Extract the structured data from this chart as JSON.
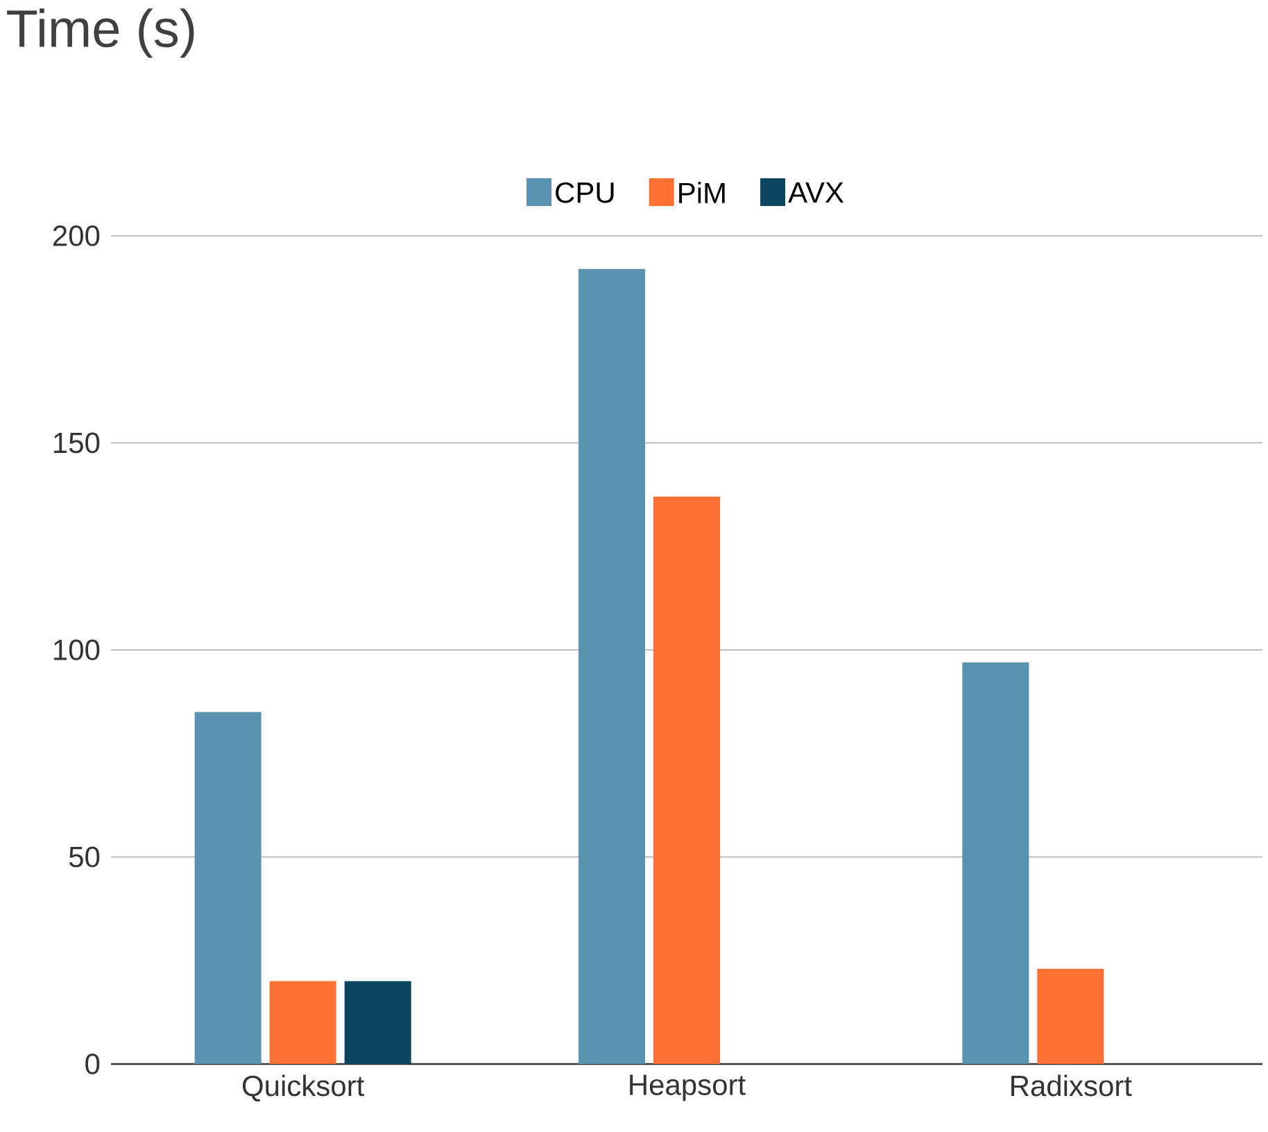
{
  "chart_data": {
    "type": "bar",
    "title": "Time (s)",
    "categories": [
      "Quicksort",
      "Heapsort",
      "Radixsort"
    ],
    "series": [
      {
        "name": "CPU",
        "color": "#5a93b0",
        "values": [
          85,
          192,
          97
        ]
      },
      {
        "name": "PiM",
        "color": "#ff7033",
        "values": [
          20,
          137,
          23
        ]
      },
      {
        "name": "AVX",
        "color": "#0b4560",
        "values": [
          20,
          null,
          null
        ]
      }
    ],
    "ylim": [
      0,
      200
    ],
    "yticks": [
      0,
      50,
      100,
      150,
      200
    ],
    "grid": "y",
    "legend": "top"
  }
}
